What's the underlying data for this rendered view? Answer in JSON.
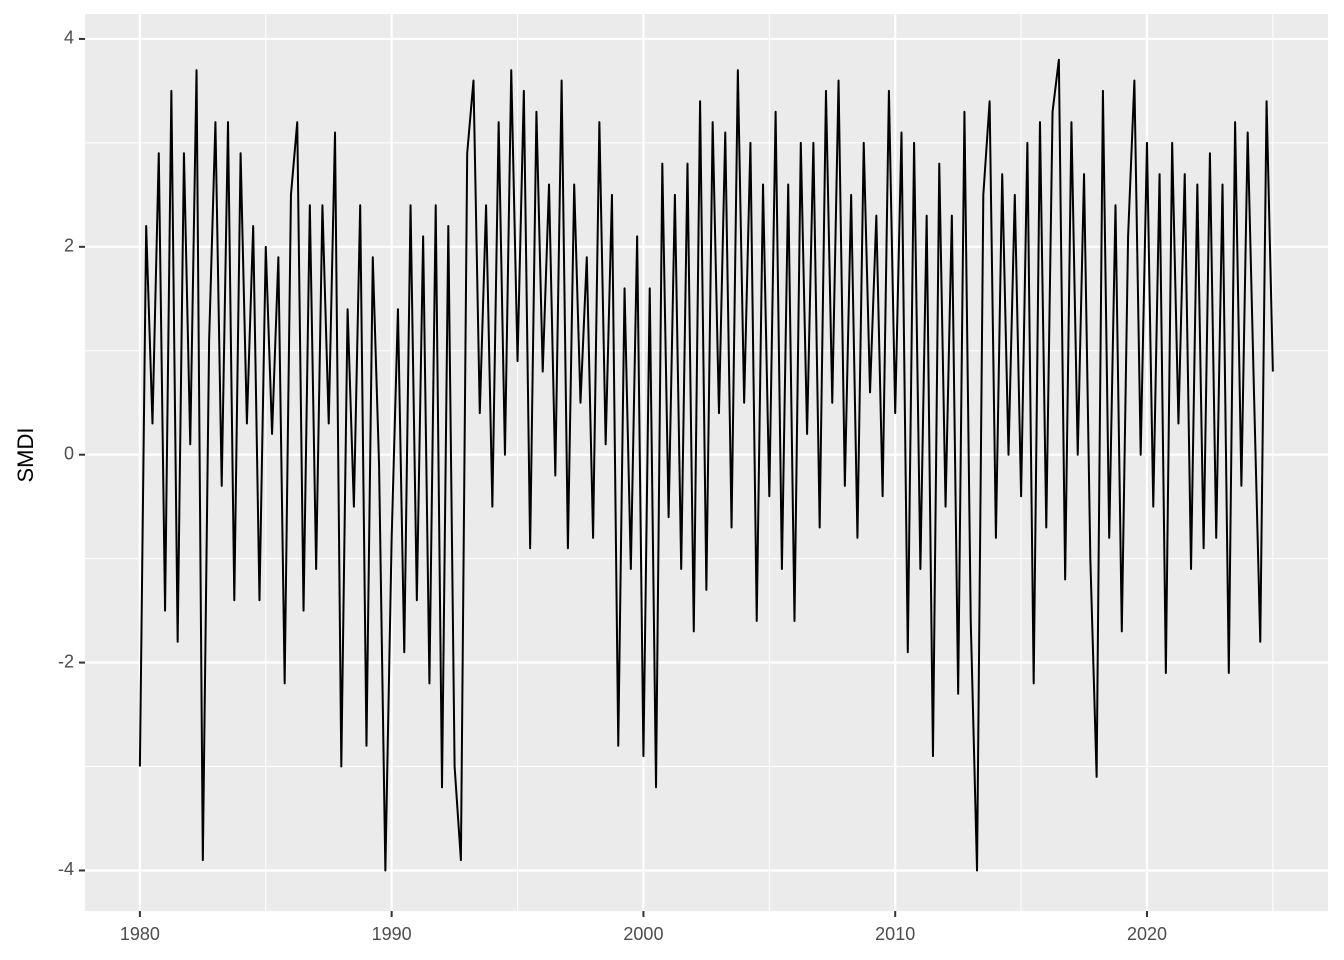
{
  "chart_data": {
    "type": "line",
    "y_label": "SMDI",
    "color": "#000000",
    "grid": true,
    "xlim": [
      1977.82,
      2027.19
    ],
    "xticks": [
      1980,
      1990,
      2000,
      2010,
      2020
    ],
    "ylim": [
      -4.39,
      4.24
    ],
    "yticks": [
      -4,
      -2,
      0,
      2,
      4
    ],
    "x": [
      1980,
      1980.25,
      1980.5,
      1980.75,
      1981,
      1981.25,
      1981.5,
      1981.75,
      1982,
      1982.25,
      1982.5,
      1982.75,
      1983,
      1983.25,
      1983.5,
      1983.75,
      1984,
      1984.25,
      1984.5,
      1984.75,
      1985,
      1985.25,
      1985.5,
      1985.75,
      1986,
      1986.25,
      1986.5,
      1986.75,
      1987,
      1987.25,
      1987.5,
      1987.75,
      1988,
      1988.25,
      1988.5,
      1988.75,
      1989,
      1989.25,
      1989.5,
      1989.75,
      1990,
      1990.25,
      1990.5,
      1990.75,
      1991,
      1991.25,
      1991.5,
      1991.75,
      1992,
      1992.25,
      1992.5,
      1992.75,
      1993,
      1993.25,
      1993.5,
      1993.75,
      1994,
      1994.25,
      1994.5,
      1994.75,
      1995,
      1995.25,
      1995.5,
      1995.75,
      1996,
      1996.25,
      1996.5,
      1996.75,
      1997,
      1997.25,
      1997.5,
      1997.75,
      1998,
      1998.25,
      1998.5,
      1998.75,
      1999,
      1999.25,
      1999.5,
      1999.75,
      2000,
      2000.25,
      2000.5,
      2000.75,
      2001,
      2001.25,
      2001.5,
      2001.75,
      2002,
      2002.25,
      2002.5,
      2002.75,
      2003,
      2003.25,
      2003.5,
      2003.75,
      2004,
      2004.25,
      2004.5,
      2004.75,
      2005,
      2005.25,
      2005.5,
      2005.75,
      2006,
      2006.25,
      2006.5,
      2006.75,
      2007,
      2007.25,
      2007.5,
      2007.75,
      2008,
      2008.25,
      2008.5,
      2008.75,
      2009,
      2009.25,
      2009.5,
      2009.75,
      2010,
      2010.25,
      2010.5,
      2010.75,
      2011,
      2011.25,
      2011.5,
      2011.75,
      2012,
      2012.25,
      2012.5,
      2012.75,
      2013,
      2013.25,
      2013.5,
      2013.75,
      2014,
      2014.25,
      2014.5,
      2014.75,
      2015,
      2015.25,
      2015.5,
      2015.75,
      2016,
      2016.25,
      2016.5,
      2016.75,
      2017,
      2017.25,
      2017.5,
      2017.75,
      2018,
      2018.25,
      2018.5,
      2018.75,
      2019,
      2019.25,
      2019.5,
      2019.75,
      2020,
      2020.25,
      2020.5,
      2020.75,
      2021,
      2021.25,
      2021.5,
      2021.75,
      2022,
      2022.25,
      2022.5,
      2022.75,
      2023,
      2023.25,
      2023.5,
      2023.75,
      2024,
      2024.25,
      2024.5,
      2024.75,
      2025
    ],
    "values": [
      -3.0,
      2.2,
      0.3,
      2.9,
      -1.5,
      3.5,
      -1.8,
      2.9,
      0.1,
      3.7,
      -3.9,
      1.1,
      3.2,
      -0.3,
      3.2,
      -1.4,
      2.9,
      0.3,
      2.2,
      -1.4,
      2.0,
      0.2,
      1.9,
      -2.2,
      2.5,
      3.2,
      -1.5,
      2.4,
      -1.1,
      2.4,
      0.3,
      3.1,
      -3.0,
      1.4,
      -0.5,
      2.4,
      -2.8,
      1.9,
      -0.1,
      -4.0,
      -0.8,
      1.4,
      -1.9,
      2.4,
      -1.4,
      2.1,
      -2.2,
      2.4,
      -3.2,
      2.2,
      -3.0,
      -3.9,
      2.9,
      3.6,
      0.4,
      2.4,
      -0.5,
      3.2,
      0.0,
      3.7,
      0.9,
      3.5,
      -0.9,
      3.3,
      0.8,
      2.6,
      -0.2,
      3.6,
      -0.9,
      2.6,
      0.5,
      1.9,
      -0.8,
      3.2,
      0.1,
      2.5,
      -2.8,
      1.6,
      -1.1,
      2.1,
      -2.9,
      1.6,
      -3.2,
      2.8,
      -0.6,
      2.5,
      -1.1,
      2.8,
      -1.7,
      3.4,
      -1.3,
      3.2,
      0.4,
      3.1,
      -0.7,
      3.7,
      0.5,
      3.0,
      -1.6,
      2.6,
      -0.4,
      3.3,
      -1.1,
      2.6,
      -1.6,
      3.0,
      0.2,
      3.0,
      -0.7,
      3.5,
      0.5,
      3.6,
      -0.3,
      2.5,
      -0.8,
      3.0,
      0.6,
      2.3,
      -0.4,
      3.5,
      0.4,
      3.1,
      -1.9,
      3.0,
      -1.1,
      2.3,
      -2.9,
      2.8,
      -0.5,
      2.3,
      -2.3,
      3.3,
      -1.6,
      -4.0,
      2.5,
      3.4,
      -0.8,
      2.7,
      0.0,
      2.5,
      -0.4,
      3.0,
      -2.2,
      3.2,
      -0.7,
      3.3,
      3.8,
      -1.2,
      3.2,
      0.0,
      2.7,
      -1.0,
      -3.1,
      3.5,
      -0.8,
      2.4,
      -1.7,
      2.1,
      3.6,
      0.0,
      3.0,
      -0.5,
      2.7,
      -2.1,
      3.0,
      0.3,
      2.7,
      -1.1,
      2.6,
      -0.9,
      2.9,
      -0.8,
      2.6,
      -2.1,
      3.2,
      -0.3,
      3.1,
      0.6,
      -1.8,
      3.4,
      0.8
    ]
  }
}
